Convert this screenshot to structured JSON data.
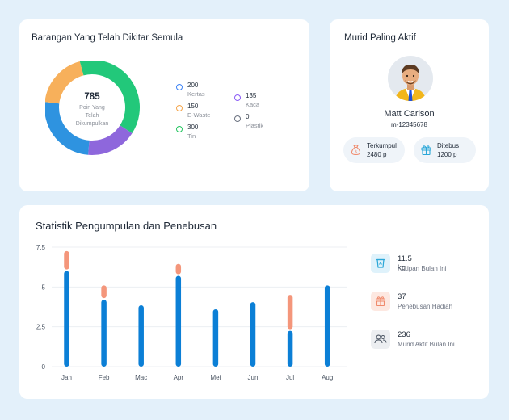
{
  "recycled": {
    "title": "Barangan Yang Telah Dikitar Semula",
    "center_value": "785",
    "center_caption": [
      "Poin Yang",
      "Telah",
      "Dikumpulkan"
    ],
    "legend": [
      {
        "value": "200",
        "label": "Kertas",
        "color": "#3b82f6"
      },
      {
        "value": "150",
        "label": "E-Waste",
        "color": "#f5a54a"
      },
      {
        "value": "300",
        "label": "Tin",
        "color": "#22c55e"
      },
      {
        "value": "135",
        "label": "Kaca",
        "color": "#8b5cf6"
      },
      {
        "value": "0",
        "label": "Plastik",
        "color": "#6b7280"
      }
    ],
    "segments": [
      {
        "label": "Tin",
        "value": 300,
        "color": "#22c87a"
      },
      {
        "label": "Kaca",
        "value": 135,
        "color": "#8e67dc"
      },
      {
        "label": "Kertas",
        "value": 200,
        "color": "#2e93e0"
      },
      {
        "label": "E-Waste",
        "value": 150,
        "color": "#f7b05b"
      }
    ]
  },
  "student": {
    "title": "Murid Paling Aktif",
    "name": "Matt Carlson",
    "id": "m-12345678",
    "collected_label": "Terkumpul",
    "collected_value": "2480 p",
    "redeemed_label": "Ditebus",
    "redeemed_value": "1200 p"
  },
  "stats": {
    "title": "Statistik Pengumpulan dan Penebusan",
    "items": [
      {
        "value": "11.5 kg",
        "label": "Kutipan Bulan Ini",
        "icon": "recycle-bin-icon"
      },
      {
        "value": "37",
        "label": "Penebusan Hadiah",
        "icon": "gift-icon"
      },
      {
        "value": "236",
        "label": "Murid Aktif Bulan Ini",
        "icon": "users-icon"
      }
    ]
  },
  "chart_data": {
    "type": "bar",
    "categories": [
      "Jan",
      "Feb",
      "Mac",
      "Apr",
      "Mei",
      "Jun",
      "Jul",
      "Aug"
    ],
    "yticks": [
      "0",
      "2.5",
      "5",
      "7.5"
    ],
    "ylim": [
      0,
      7.5
    ],
    "grid": true,
    "series": [
      {
        "values": [
          6.0,
          4.2,
          3.85,
          5.7,
          3.6,
          4.05,
          2.25,
          5.1
        ],
        "color": "#0b7fd6"
      },
      {
        "values": [
          1.2,
          0.85,
          0,
          0.7,
          0,
          0,
          2.2,
          0
        ],
        "color": "#f4967b"
      }
    ]
  }
}
